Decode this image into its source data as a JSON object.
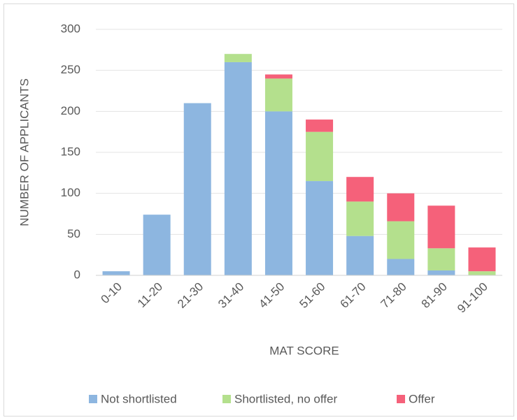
{
  "chart_data": {
    "type": "stacked_bar",
    "y_label": "NUMBER OF APPLICANTS",
    "x_label": "MAT SCORE",
    "categories": [
      "0-10",
      "11-20",
      "21-30",
      "31-40",
      "41-50",
      "51-60",
      "61-70",
      "71-80",
      "81-90",
      "91-100"
    ],
    "series": [
      {
        "name": "Not shortlisted",
        "color": "#8db6e0",
        "values": [
          5,
          74,
          210,
          260,
          200,
          115,
          48,
          20,
          6,
          0
        ]
      },
      {
        "name": "Shortlisted, no offer",
        "color": "#b4e08d",
        "values": [
          0,
          0,
          0,
          10,
          40,
          60,
          42,
          46,
          27,
          5
        ]
      },
      {
        "name": "Offer",
        "color": "#f5617a",
        "values": [
          0,
          0,
          0,
          0,
          5,
          15,
          30,
          34,
          52,
          29
        ]
      }
    ],
    "ylim": [
      0,
      300
    ],
    "yticks": [
      0,
      50,
      100,
      150,
      200,
      250,
      300
    ],
    "grid": true,
    "legend": "bottom"
  }
}
